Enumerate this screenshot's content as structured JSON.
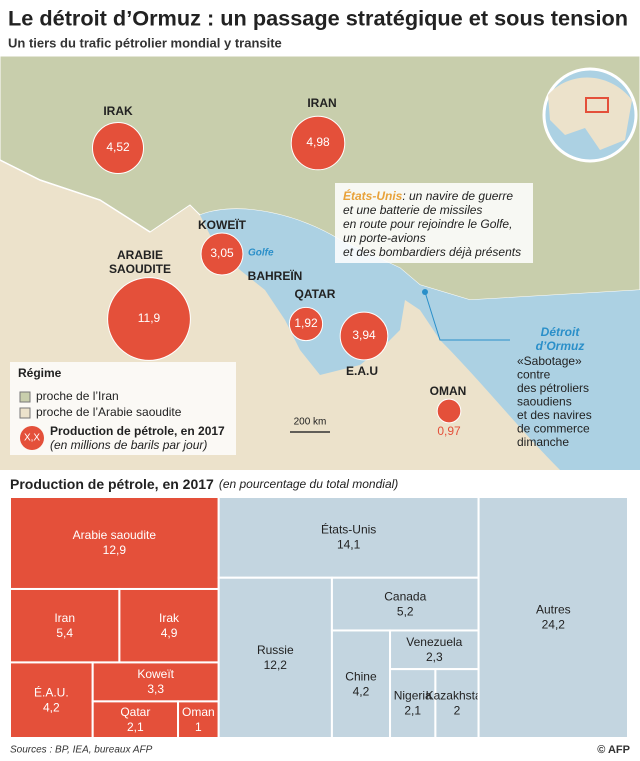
{
  "header": {
    "title": "Le détroit d’Ormuz : un passage stratégique et sous tension",
    "subtitle": "Un tiers du trafic pétrolier mondial y transite"
  },
  "map": {
    "labels": [
      "IRAK",
      "IRAN",
      "KOWEÏT",
      "ARABIE",
      "SAOUDITE",
      "BAHREÏN",
      "QATAR",
      "E.A.U",
      "OMAN"
    ],
    "sea_label": "Golfe",
    "strait": [
      "Détroit",
      "d’Ormuz"
    ],
    "scale": "200 km",
    "bubbles": [
      {
        "value": 4.52,
        "label": "4,52"
      },
      {
        "value": 4.98,
        "label": "4,98"
      },
      {
        "value": 3.05,
        "label": "3,05"
      },
      {
        "value": 11.9,
        "label": "11,9"
      },
      {
        "value": 1.92,
        "label": "1,92"
      },
      {
        "value": 3.94,
        "label": "3,94"
      },
      {
        "value": 0.97,
        "label": "0,97"
      }
    ],
    "us_note": {
      "lead": "États-Unis",
      "lines": [
        ": un navire de guerre",
        "et une batterie de missiles",
        "en route pour rejoindre le Golfe,",
        "un porte-avions",
        "et des bombardiers déjà présents"
      ]
    },
    "sabotage_note": [
      "«Sabotage»",
      "contre",
      "des pétroliers",
      "saoudiens",
      "et des navires",
      "de commerce",
      "dimanche"
    ],
    "legend": {
      "title": "Régime",
      "iran": "proche de l’Iran",
      "saudi": "proche de l’Arabie saoudite",
      "symbol": "X,X",
      "production": "Production de pétrole, en 2017",
      "unit": "(en millions de barils par jour)"
    }
  },
  "chart_data": {
    "type": "treemap",
    "title": "Production de pétrole, en 2017",
    "subtitle": "(en pourcentage du total mondial)",
    "categories": [
      "Arabie saoudite",
      "Iran",
      "Irak",
      "É.A.U.",
      "Koweït",
      "Qatar",
      "Oman",
      "États-Unis",
      "Canada",
      "Russie",
      "Venezuela",
      "Chine",
      "Nigeria",
      "Kazakhstan",
      "Autres"
    ],
    "values": [
      12.9,
      5.4,
      4.9,
      4.2,
      3.3,
      2.1,
      1,
      14.1,
      5.2,
      12.2,
      2.3,
      4.2,
      2.1,
      2,
      24.2
    ],
    "value_labels": [
      "12,9",
      "5,4",
      "4,9",
      "4,2",
      "3,3",
      "2,1",
      "1",
      "14,1",
      "5,2",
      "12,2",
      "2,3",
      "4,2",
      "2,1",
      "2",
      "24,2"
    ],
    "colors": [
      "#e4503a",
      "#e4503a",
      "#e4503a",
      "#e4503a",
      "#e4503a",
      "#e4503a",
      "#e4503a",
      "#c3d5e0",
      "#c3d5e0",
      "#c3d5e0",
      "#c3d5e0",
      "#c3d5e0",
      "#c3d5e0",
      "#c3d5e0",
      "#c3d5e0"
    ]
  },
  "footer": {
    "sources": "Sources : BP, IEA, bureaux AFP",
    "credit": "© AFP"
  }
}
